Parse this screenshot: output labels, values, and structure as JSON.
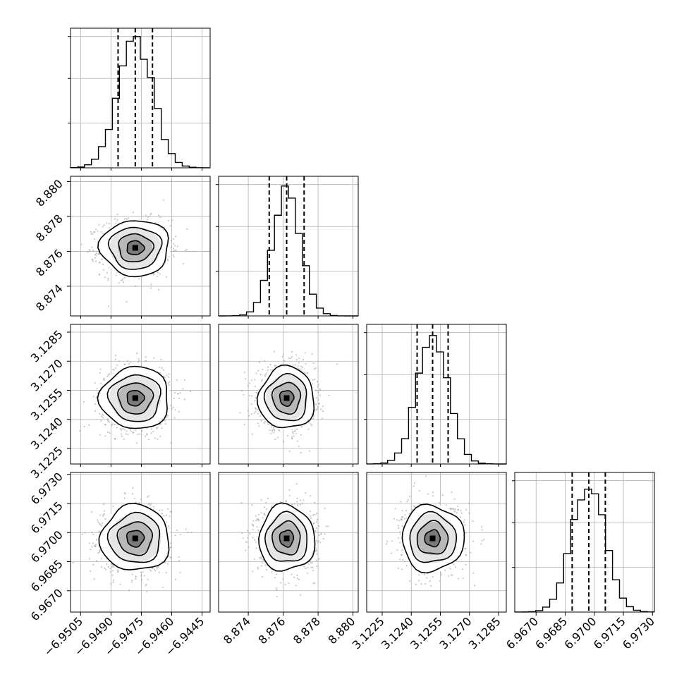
{
  "chart_data": {
    "type": "corner",
    "parameters": [
      {
        "mean": -6.9478,
        "std": 0.00085,
        "range": [
          -6.951,
          -6.9441
        ],
        "ticks": [
          -6.9505,
          -6.949,
          -6.9475,
          -6.946,
          -6.9445
        ],
        "tick_labels": [
          "−6.9505",
          "−6.9490",
          "−6.9475",
          "−6.9460",
          "−6.9445"
        ],
        "quantiles": [
          -6.94865,
          -6.9478,
          -6.94695
        ]
      },
      {
        "mean": 8.8762,
        "std": 0.0008,
        "range": [
          8.8723,
          8.8803
        ],
        "ticks": [
          8.874,
          8.876,
          8.878,
          8.88
        ],
        "tick_labels": [
          "8.874",
          "8.876",
          "8.878",
          "8.880"
        ],
        "quantiles": [
          8.8752,
          8.8762,
          8.8772
        ]
      },
      {
        "mean": 3.1251,
        "std": 0.0008,
        "range": [
          3.1217,
          3.1289
        ],
        "ticks": [
          3.1225,
          3.124,
          3.1255,
          3.127,
          3.1285
        ],
        "tick_labels": [
          "3.1225",
          "3.1240",
          "3.1255",
          "3.1270",
          "3.1285"
        ],
        "quantiles": [
          3.1243,
          3.1251,
          3.1259
        ]
      },
      {
        "mean": 6.9697,
        "std": 0.00085,
        "range": [
          6.9659,
          6.9731
        ],
        "ticks": [
          6.967,
          6.9685,
          6.97,
          6.9715,
          6.973
        ],
        "tick_labels": [
          "6.9670",
          "6.9685",
          "6.9700",
          "6.9715",
          "6.9730"
        ],
        "quantiles": [
          6.96886,
          6.96972,
          6.97057
        ]
      }
    ],
    "diagonal_hist_peak_fraction": [
      0.94,
      0.93,
      0.92,
      0.93
    ],
    "bins": 20,
    "grid": true,
    "contour_levels_sigma": [
      0.5,
      1.0,
      1.5,
      2.0
    ]
  }
}
